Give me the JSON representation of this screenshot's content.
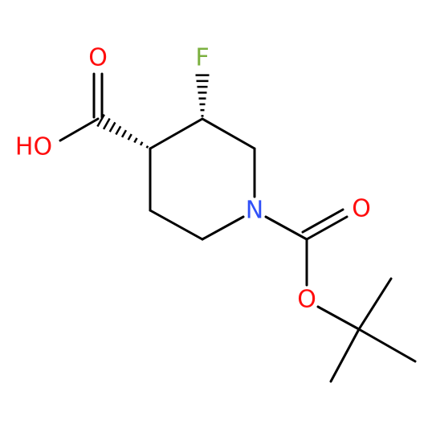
{
  "atoms": [
    {
      "label": "O"
    },
    {
      "label": "HO"
    },
    {
      "label": "F"
    },
    {
      "label": "N"
    },
    {
      "label": "O"
    },
    {
      "label": "O"
    }
  ]
}
